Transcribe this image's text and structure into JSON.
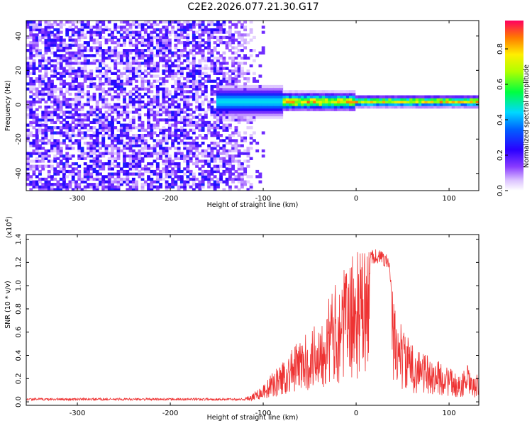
{
  "chart_data": [
    {
      "type": "heatmap",
      "title": "C2E2.2026.077.21.30.G17",
      "xlabel": "Height of straight line (km)",
      "ylabel": "Frequency (Hz)",
      "xlim": [
        -355,
        132
      ],
      "ylim": [
        -50,
        49
      ],
      "x_ticks": [
        -300,
        -200,
        -100,
        0,
        100
      ],
      "x_tick_labels": [
        "-300",
        "-200",
        "-100",
        "0",
        "100"
      ],
      "y_ticks": [
        -40,
        -20,
        0,
        20,
        40
      ],
      "y_tick_labels": [
        "-40",
        "-20",
        "0",
        "20",
        "40"
      ],
      "colorbar": {
        "label": "Normalized spectral amplitude",
        "range": [
          0,
          0.96
        ],
        "ticks": [
          0.0,
          0.2,
          0.4,
          0.6,
          0.8
        ],
        "tick_labels": [
          "0.0",
          "0.2",
          "0.4",
          "0.6",
          "0.8"
        ]
      },
      "description_values": {
        "noise_region_x": [
          -355,
          -100
        ],
        "noise_amplitude": 0.18,
        "signal_band_center_hz": 2,
        "signal_band_x": [
          -150,
          132
        ],
        "signal_peak_amplitude": 0.9
      }
    },
    {
      "type": "line",
      "title": "",
      "xlabel": "Height of straight line (km)",
      "ylabel": "SNR (10 * v/v)",
      "y_multiplier_label": "(x10",
      "y_multiplier_exp": "4",
      "y_multiplier_close": ")",
      "xlim": [
        -355,
        132
      ],
      "ylim": [
        -0.03,
        1.44
      ],
      "x_ticks": [
        -300,
        -200,
        -100,
        0,
        100
      ],
      "x_tick_labels": [
        "-300",
        "-200",
        "-100",
        "0",
        "100"
      ],
      "y_ticks": [
        0.0,
        0.2,
        0.4,
        0.6,
        0.8,
        1.0,
        1.2,
        1.4
      ],
      "y_tick_labels": [
        "0.0",
        "0.2",
        "0.4",
        "0.6",
        "0.8",
        "1.0",
        "1.2",
        "1.4"
      ],
      "color": "#ee3333",
      "envelope": {
        "x": [
          -355,
          -120,
          -100,
          -90,
          -80,
          -70,
          -60,
          -50,
          -40,
          -30,
          -20,
          -10,
          0,
          10,
          20,
          30,
          35,
          40,
          50,
          60,
          70,
          80,
          90,
          100,
          110,
          120,
          125,
          132
        ],
        "y": [
          0.03,
          0.03,
          0.15,
          0.25,
          0.35,
          0.45,
          0.55,
          0.6,
          0.75,
          0.9,
          1.05,
          1.2,
          1.3,
          1.33,
          1.32,
          1.3,
          1.25,
          0.9,
          0.65,
          0.5,
          0.45,
          0.38,
          0.35,
          0.3,
          0.22,
          0.32,
          0.2,
          0.25
        ]
      }
    }
  ]
}
